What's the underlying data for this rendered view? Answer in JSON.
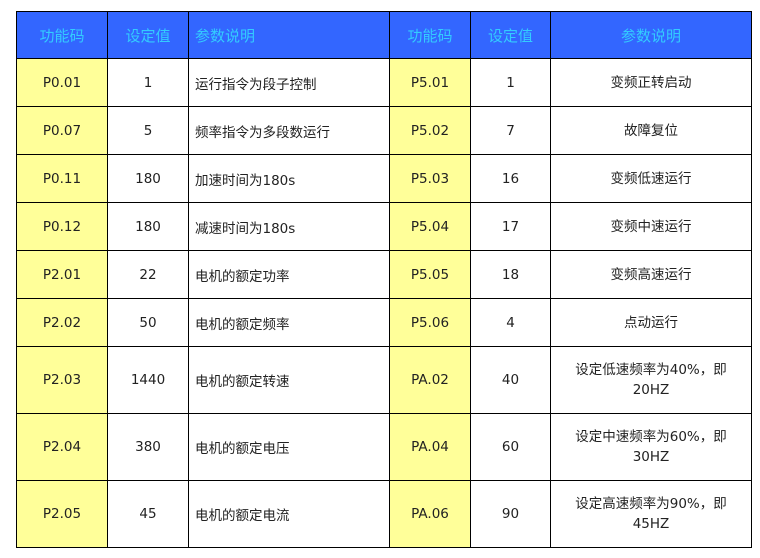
{
  "headers": [
    "功能码",
    "设定值",
    "参数说明",
    "功能码",
    "设定值",
    "参数说明"
  ],
  "rows": [
    {
      "code1": "P0.01",
      "val1": "1",
      "desc1": "运行指令为段子控制",
      "code2": "P5.01",
      "val2": "1",
      "desc2": "变频正转启动"
    },
    {
      "code1": "P0.07",
      "val1": "5",
      "desc1": "频率指令为多段数运行",
      "code2": "P5.02",
      "val2": "7",
      "desc2": "故障复位"
    },
    {
      "code1": "P0.11",
      "val1": "180",
      "desc1": "加速时间为180s",
      "code2": "P5.03",
      "val2": "16",
      "desc2": "变频低速运行"
    },
    {
      "code1": "P0.12",
      "val1": "180",
      "desc1": "减速时间为180s",
      "code2": "P5.04",
      "val2": "17",
      "desc2": "变频中速运行"
    },
    {
      "code1": "P2.01",
      "val1": "22",
      "desc1": "电机的额定功率",
      "code2": "P5.05",
      "val2": "18",
      "desc2": "变频高速运行"
    },
    {
      "code1": "P2.02",
      "val1": "50",
      "desc1": "电机的额定频率",
      "code2": "P5.06",
      "val2": "4",
      "desc2": "点动运行"
    },
    {
      "code1": "P2.03",
      "val1": "1440",
      "desc1": "电机的额定转速",
      "code2": "PA.02",
      "val2": "40",
      "desc2": "设定低速频率为40%，即20HZ"
    },
    {
      "code1": "P2.04",
      "val1": "380",
      "desc1": "电机的额定电压",
      "code2": "PA.04",
      "val2": "60",
      "desc2": "设定中速频率为60%，即30HZ"
    },
    {
      "code1": "P2.05",
      "val1": "45",
      "desc1": "电机的额定电流",
      "code2": "PA.06",
      "val2": "90",
      "desc2": "设定高速频率为90%，即45HZ"
    }
  ],
  "colors": {
    "header_bg": "#3366ff",
    "header_text": "#33ccff",
    "code_bg": "#ffff99"
  }
}
